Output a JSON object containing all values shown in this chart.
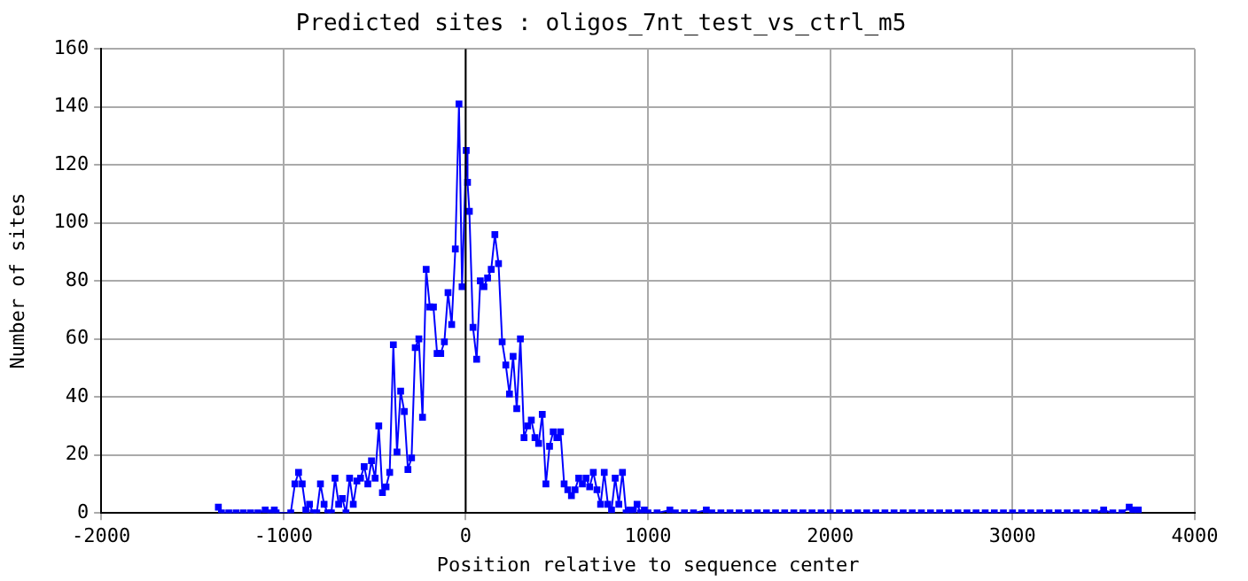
{
  "chart_data": {
    "type": "line",
    "title": "Predicted sites : oligos_7nt_test_vs_ctrl_m5",
    "xlabel": "Position relative to sequence center",
    "ylabel": "Number of sites",
    "x": [
      -1357,
      -1340,
      -1300,
      -1260,
      -1220,
      -1180,
      -1140,
      -1100,
      -1070,
      -1050,
      -1040,
      -960,
      -937,
      -917,
      -897,
      -877,
      -857,
      -837,
      -817,
      -797,
      -777,
      -757,
      -737,
      -717,
      -697,
      -677,
      -657,
      -637,
      -617,
      -597,
      -577,
      -557,
      -537,
      -517,
      -497,
      -477,
      -457,
      -437,
      -417,
      -397,
      -377,
      -357,
      -337,
      -317,
      -297,
      -277,
      -257,
      -237,
      -217,
      -197,
      -177,
      -157,
      -137,
      -117,
      -97,
      -77,
      -57,
      -37,
      -20,
      3,
      10,
      20,
      40,
      60,
      80,
      100,
      120,
      140,
      160,
      180,
      200,
      220,
      240,
      260,
      280,
      300,
      320,
      340,
      360,
      380,
      400,
      420,
      440,
      460,
      480,
      500,
      520,
      540,
      560,
      580,
      600,
      620,
      640,
      660,
      680,
      700,
      720,
      740,
      760,
      780,
      800,
      820,
      840,
      860,
      880,
      900,
      920,
      940,
      960,
      980,
      1000,
      1050,
      1120,
      1150,
      1200,
      1250,
      1320,
      1350,
      1400,
      1450,
      1500,
      1550,
      1600,
      1650,
      1700,
      1750,
      1800,
      1850,
      1900,
      1950,
      2000,
      2050,
      2100,
      2150,
      2200,
      2250,
      2300,
      2350,
      2400,
      2450,
      2500,
      2550,
      2600,
      2650,
      2700,
      2750,
      2800,
      2850,
      2900,
      2950,
      3000,
      3050,
      3100,
      3150,
      3200,
      3250,
      3300,
      3350,
      3400,
      3450,
      3500,
      3550,
      3600,
      3640,
      3660,
      3690
    ],
    "series": [
      {
        "color": "#0000ff",
        "values": [
          2,
          0,
          0,
          0,
          0,
          0,
          0,
          1,
          0,
          1,
          0,
          0,
          10,
          14,
          10,
          1,
          3,
          0,
          0,
          10,
          3,
          0,
          0,
          12,
          3,
          5,
          0,
          12,
          3,
          11,
          12,
          16,
          10,
          18,
          12,
          30,
          7,
          9,
          14,
          58,
          21,
          42,
          35,
          15,
          19,
          57,
          60,
          33,
          84,
          71,
          71,
          55,
          55,
          59,
          76,
          65,
          91,
          141,
          78,
          125,
          114,
          104,
          64,
          53,
          80,
          78,
          81,
          84,
          96,
          86,
          59,
          51,
          41,
          54,
          36,
          60,
          26,
          30,
          32,
          26,
          24,
          34,
          10,
          23,
          28,
          26,
          28,
          10,
          8,
          6,
          8,
          12,
          10,
          12,
          9,
          14,
          8,
          3,
          14,
          3,
          1,
          12,
          3,
          14,
          0,
          1,
          1,
          3,
          0,
          1,
          0,
          0,
          1,
          0,
          0,
          0,
          1,
          0,
          0,
          0,
          0,
          0,
          0,
          0,
          0,
          0,
          0,
          0,
          0,
          0,
          0,
          0,
          0,
          0,
          0,
          0,
          0,
          0,
          0,
          0,
          0,
          0,
          0,
          0,
          0,
          0,
          0,
          0,
          0,
          0,
          0,
          0,
          0,
          0,
          0,
          0,
          0,
          0,
          0,
          0,
          1,
          0,
          0,
          2,
          1,
          1
        ]
      }
    ],
    "xlim": [
      -2000,
      4000
    ],
    "xticks": [
      -2000,
      -1000,
      0,
      1000,
      2000,
      3000,
      4000
    ],
    "ylim": [
      0,
      160
    ],
    "yticks": [
      0,
      20,
      40,
      60,
      80,
      100,
      120,
      140,
      160
    ],
    "grid": true,
    "legend": false,
    "marker": "square",
    "line_style": "solid",
    "ref_lines": [
      {
        "axis": "x",
        "value": 0,
        "color": "#000000"
      }
    ]
  }
}
